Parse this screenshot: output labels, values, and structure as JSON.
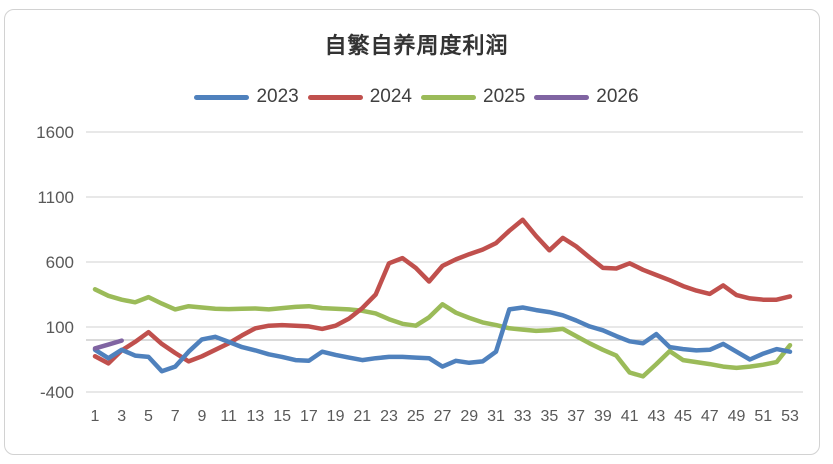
{
  "chart_data": {
    "type": "line",
    "title": "自繁自养周度利润",
    "xlabel": "",
    "ylabel": "",
    "categories": [
      1,
      2,
      3,
      4,
      5,
      6,
      7,
      8,
      9,
      10,
      11,
      12,
      13,
      14,
      15,
      16,
      17,
      18,
      19,
      20,
      21,
      22,
      23,
      24,
      25,
      26,
      27,
      28,
      29,
      30,
      31,
      32,
      33,
      34,
      35,
      36,
      37,
      38,
      39,
      40,
      41,
      42,
      43,
      44,
      45,
      46,
      47,
      48,
      49,
      50,
      51,
      52,
      53
    ],
    "x_tick_labels": [
      "1",
      "3",
      "5",
      "7",
      "9",
      "11",
      "13",
      "15",
      "17",
      "19",
      "21",
      "23",
      "25",
      "27",
      "29",
      "31",
      "33",
      "35",
      "37",
      "39",
      "41",
      "43",
      "45",
      "47",
      "49",
      "51",
      "53"
    ],
    "y_ticks": [
      -400,
      100,
      600,
      1100,
      1600
    ],
    "ylim": [
      -400,
      1600
    ],
    "grid": "horizontal",
    "legend_position": "top",
    "axis_text_color": "#595959",
    "gridline_color": "#d9d9d9",
    "zero_axis_color": "#c3c3c3",
    "series": [
      {
        "name": "2023",
        "color": "#4F81BD",
        "values": [
          -75,
          -140,
          -75,
          -120,
          -130,
          -240,
          -205,
          -90,
          5,
          25,
          -15,
          -55,
          -80,
          -110,
          -130,
          -155,
          -160,
          -90,
          -115,
          -135,
          -155,
          -140,
          -130,
          -130,
          -135,
          -140,
          -205,
          -160,
          -175,
          -165,
          -90,
          235,
          250,
          230,
          215,
          190,
          150,
          105,
          75,
          30,
          -10,
          -25,
          45,
          -55,
          -70,
          -80,
          -75,
          -30,
          -90,
          -150,
          -105,
          -70,
          -90
        ]
      },
      {
        "name": "2024",
        "color": "#C0504D",
        "values": [
          -125,
          -180,
          -80,
          -15,
          60,
          -30,
          -100,
          -165,
          -125,
          -75,
          -25,
          35,
          90,
          110,
          115,
          110,
          105,
          85,
          110,
          165,
          245,
          350,
          590,
          630,
          555,
          450,
          570,
          620,
          660,
          695,
          745,
          840,
          925,
          800,
          690,
          785,
          720,
          635,
          555,
          550,
          590,
          540,
          500,
          460,
          415,
          380,
          355,
          420,
          345,
          320,
          310,
          310,
          335
        ]
      },
      {
        "name": "2025",
        "color": "#9BBB59",
        "values": [
          390,
          340,
          310,
          290,
          330,
          280,
          235,
          260,
          250,
          240,
          238,
          240,
          242,
          235,
          245,
          255,
          260,
          245,
          240,
          235,
          225,
          205,
          160,
          125,
          110,
          175,
          275,
          210,
          170,
          135,
          115,
          90,
          80,
          70,
          75,
          85,
          30,
          -25,
          -75,
          -120,
          -250,
          -280,
          -185,
          -85,
          -155,
          -170,
          -185,
          -205,
          -215,
          -205,
          -190,
          -170,
          -40
        ]
      },
      {
        "name": "2026",
        "color": "#8064A2",
        "values": [
          -65,
          -35,
          -5,
          null,
          null,
          null,
          null,
          null,
          null,
          null,
          null,
          null,
          null,
          null,
          null,
          null,
          null,
          null,
          null,
          null,
          null,
          null,
          null,
          null,
          null,
          null,
          null,
          null,
          null,
          null,
          null,
          null,
          null,
          null,
          null,
          null,
          null,
          null,
          null,
          null,
          null,
          null,
          null,
          null,
          null,
          null,
          null,
          null,
          null,
          null,
          null,
          null,
          null
        ]
      }
    ]
  }
}
